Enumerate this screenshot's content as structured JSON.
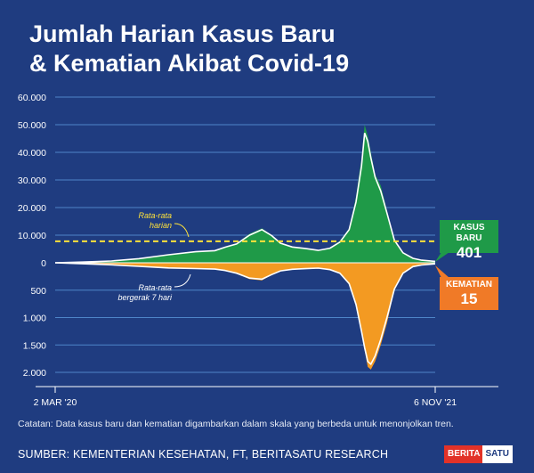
{
  "title_line1": "Jumlah Harian Kasus Baru",
  "title_line2": "& Kematian Akibat Covid-19",
  "note": "Catatan: Data kasus baru dan kematian digambarkan dalam skala yang berbeda untuk menonjolkan tren.",
  "source": "SUMBER: KEMENTERIAN KESEHATAN, FT, BERITASATU RESEARCH",
  "logo": {
    "part1": "BERITA",
    "part2": "SATU"
  },
  "callouts": {
    "cases": {
      "label": "KASUS BARU",
      "value": "401"
    },
    "deaths": {
      "label": "KEMATIAN",
      "value": "15"
    }
  },
  "annotations": {
    "avg_daily": [
      "Rata-rata",
      "harian"
    ],
    "moving_avg": [
      "Rata-rata",
      "bergerak 7 hari"
    ]
  },
  "colors": {
    "background": "#1f3c80",
    "cases": "#1f9a48",
    "deaths": "#f39a22",
    "avg_line": "#ffe23a",
    "moving_avg": "#ffffff",
    "grid": "#4f85c8"
  },
  "chart_data": {
    "type": "area",
    "x_start_label": "2 MAR '20",
    "x_end_label": "6 NOV '21",
    "cases_axis": {
      "ticks": [
        "60.000",
        "50.000",
        "40.000",
        "30.000",
        "20.000",
        "10.000",
        "0"
      ],
      "tick_values": [
        60000,
        50000,
        40000,
        30000,
        20000,
        10000,
        0
      ],
      "ylim": [
        0,
        60000
      ]
    },
    "deaths_axis": {
      "ticks": [
        "500",
        "1.000",
        "1.500",
        "2.000"
      ],
      "tick_values": [
        500,
        1000,
        1500,
        2000
      ],
      "ylim": [
        0,
        2000
      ]
    },
    "average_daily_cases": 7800,
    "series": [
      {
        "name": "Kasus Baru",
        "x": [
          "2020-03-02",
          "2020-04-15",
          "2020-06-01",
          "2020-07-15",
          "2020-09-01",
          "2020-10-15",
          "2020-11-15",
          "2020-12-01",
          "2020-12-20",
          "2021-01-10",
          "2021-01-30",
          "2021-02-15",
          "2021-03-01",
          "2021-03-20",
          "2021-04-10",
          "2021-05-01",
          "2021-05-20",
          "2021-06-05",
          "2021-06-20",
          "2021-07-01",
          "2021-07-10",
          "2021-07-15",
          "2021-07-20",
          "2021-07-25",
          "2021-08-01",
          "2021-08-10",
          "2021-08-20",
          "2021-09-01",
          "2021-09-15",
          "2021-10-01",
          "2021-10-15",
          "2021-11-06"
        ],
        "values": [
          0,
          300,
          700,
          1600,
          3000,
          4200,
          4500,
          5800,
          7000,
          10500,
          12500,
          10000,
          7200,
          5800,
          5300,
          4500,
          5500,
          8000,
          12500,
          24000,
          38000,
          50000,
          46000,
          40000,
          32000,
          28000,
          19000,
          8000,
          3500,
          1500,
          900,
          401
        ],
        "moving_avg": [
          0,
          250,
          650,
          1500,
          2900,
          4000,
          4400,
          5600,
          6800,
          10000,
          12000,
          9800,
          7100,
          5700,
          5200,
          4500,
          5300,
          7500,
          12000,
          22000,
          35000,
          47000,
          44000,
          38000,
          31000,
          26000,
          18000,
          8200,
          3600,
          1600,
          950,
          500
        ]
      },
      {
        "name": "Kematian",
        "x": [
          "2020-03-02",
          "2020-04-15",
          "2020-06-01",
          "2020-07-15",
          "2020-09-01",
          "2020-10-15",
          "2020-11-15",
          "2020-12-01",
          "2020-12-20",
          "2021-01-10",
          "2021-01-30",
          "2021-02-15",
          "2021-03-01",
          "2021-03-20",
          "2021-04-10",
          "2021-05-01",
          "2021-05-20",
          "2021-06-05",
          "2021-06-20",
          "2021-07-01",
          "2021-07-10",
          "2021-07-15",
          "2021-07-20",
          "2021-07-25",
          "2021-08-01",
          "2021-08-10",
          "2021-08-20",
          "2021-09-01",
          "2021-09-15",
          "2021-10-01",
          "2021-10-15",
          "2021-11-06"
        ],
        "values": [
          0,
          20,
          40,
          70,
          100,
          110,
          120,
          150,
          200,
          300,
          320,
          220,
          150,
          120,
          110,
          100,
          130,
          200,
          400,
          800,
          1300,
          1600,
          1900,
          1950,
          1800,
          1500,
          1100,
          500,
          200,
          70,
          40,
          15
        ],
        "moving_avg": [
          0,
          18,
          38,
          65,
          95,
          105,
          115,
          140,
          190,
          280,
          300,
          215,
          148,
          118,
          108,
          98,
          125,
          190,
          380,
          760,
          1250,
          1550,
          1800,
          1850,
          1700,
          1400,
          1000,
          480,
          190,
          70,
          40,
          20
        ]
      }
    ]
  }
}
